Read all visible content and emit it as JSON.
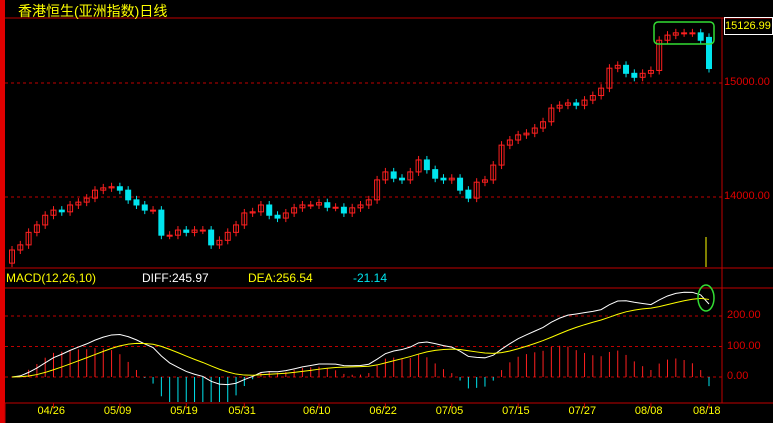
{
  "title": "香港恒生(亚洲指数)日线",
  "last_price": "15126.99",
  "macd_label": "MACD(12,26,10)",
  "diff_label": "DIFF:245.97",
  "dea_label": "DEA:256.54",
  "macd_value": "-21.14",
  "colors": {
    "up": "#ff2020",
    "down": "#00e5ee",
    "diff": "#ffffff",
    "dea": "#ffff00",
    "grid": "#c00000",
    "title": "#ffff00",
    "highlight": "#33dd33"
  },
  "price_axis": [
    {
      "value": 15000,
      "label": "15000.00"
    },
    {
      "value": 14000,
      "label": "14000.00"
    }
  ],
  "macd_axis": [
    {
      "value": 200,
      "label": "200.00"
    },
    {
      "value": 100,
      "label": "100.00"
    },
    {
      "value": 0,
      "label": "0.00"
    }
  ],
  "chart_data": {
    "type": "candlestick",
    "x_ticks": [
      {
        "label": "04/26",
        "index": 5
      },
      {
        "label": "05/09",
        "index": 13
      },
      {
        "label": "05/19",
        "index": 21
      },
      {
        "label": "05/31",
        "index": 28
      },
      {
        "label": "06/10",
        "index": 37
      },
      {
        "label": "06/22",
        "index": 45
      },
      {
        "label": "07/05",
        "index": 53
      },
      {
        "label": "07/15",
        "index": 61
      },
      {
        "label": "07/27",
        "index": 69
      },
      {
        "label": "08/08",
        "index": 77
      },
      {
        "label": "08/18",
        "index": 84
      }
    ],
    "open": [
      13420,
      13535,
      13580,
      13690,
      13755,
      13840,
      13885,
      13870,
      13930,
      13955,
      13990,
      14060,
      14080,
      14090,
      14060,
      13975,
      13930,
      13885,
      13885,
      13665,
      13665,
      13710,
      13690,
      13710,
      13710,
      13580,
      13620,
      13690,
      13755,
      13860,
      13870,
      13930,
      13840,
      13815,
      13860,
      13905,
      13930,
      13930,
      13950,
      13910,
      13910,
      13860,
      13905,
      13930,
      13975,
      14150,
      14220,
      14165,
      14150,
      14220,
      14325,
      14240,
      14165,
      14150,
      14165,
      14060,
      13990,
      14130,
      14150,
      14280,
      14455,
      14500,
      14545,
      14560,
      14605,
      14660,
      14780,
      14805,
      14825,
      14805,
      14850,
      14890,
      14955,
      15130,
      15155,
      15085,
      15050,
      15085,
      15110,
      15375,
      15420,
      15440,
      15440,
      15440,
      15400
    ],
    "close": [
      13535,
      13580,
      13690,
      13755,
      13840,
      13885,
      13870,
      13930,
      13955,
      13990,
      14060,
      14080,
      14090,
      14060,
      13975,
      13930,
      13885,
      13885,
      13665,
      13665,
      13710,
      13690,
      13710,
      13710,
      13580,
      13620,
      13690,
      13755,
      13860,
      13870,
      13930,
      13840,
      13815,
      13860,
      13905,
      13930,
      13930,
      13950,
      13910,
      13910,
      13860,
      13905,
      13930,
      13975,
      14150,
      14220,
      14165,
      14150,
      14220,
      14325,
      14240,
      14165,
      14150,
      14165,
      14060,
      13990,
      14130,
      14150,
      14280,
      14455,
      14500,
      14545,
      14560,
      14605,
      14660,
      14780,
      14805,
      14825,
      14805,
      14850,
      14890,
      14955,
      15130,
      15155,
      15085,
      15050,
      15085,
      15110,
      15375,
      15420,
      15440,
      15440,
      15440,
      15375,
      15127
    ],
    "macd_params": [
      12,
      26,
      10
    ],
    "last": {
      "diff": 245.97,
      "dea": 256.54,
      "macd": -21.14
    }
  }
}
